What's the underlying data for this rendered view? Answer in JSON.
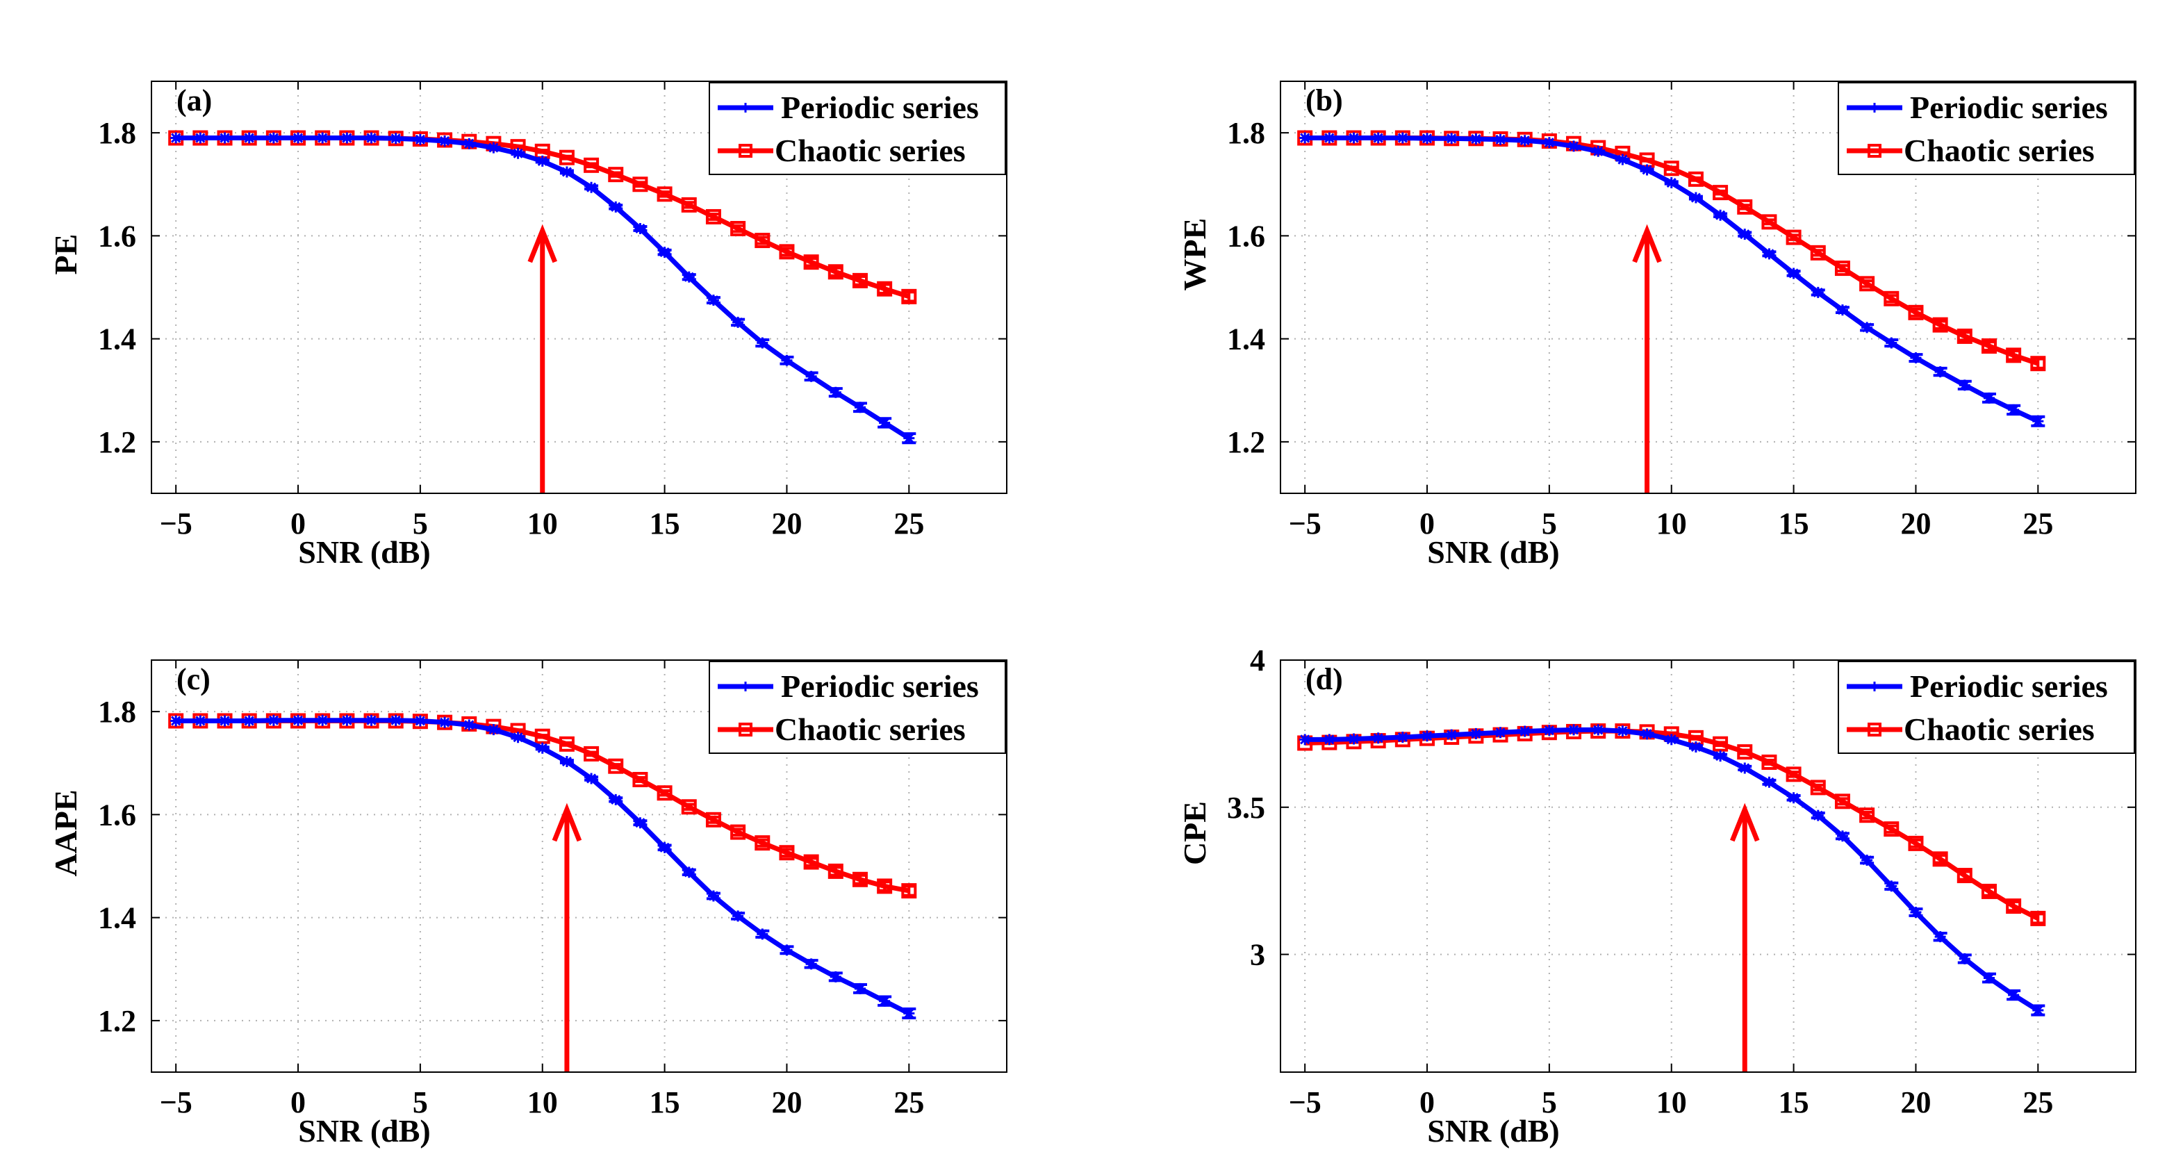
{
  "figure": {
    "colors": {
      "periodic": "#0000ff",
      "chaotic": "#ff0000",
      "arrow": "#ff0000",
      "grid": "#b0b0b0",
      "axis": "#000000"
    }
  },
  "chart_data": [
    {
      "type": "line",
      "panel": "(a)",
      "xlabel": "SNR (dB)",
      "ylabel": "PE",
      "xlim": [
        -6,
        29
      ],
      "ylim": [
        1.1,
        1.9
      ],
      "xticks": [
        -5,
        0,
        5,
        10,
        15,
        20,
        25
      ],
      "xtick_labels": [
        "−5",
        "0",
        "5",
        "10",
        "15",
        "20",
        "25"
      ],
      "yticks": [
        1.2,
        1.4,
        1.6,
        1.8
      ],
      "ytick_labels": [
        "1.2",
        "1.4",
        "1.6",
        "1.8"
      ],
      "grid": true,
      "legend_position": "top-right",
      "arrow_x": 10,
      "x": [
        -5,
        -4,
        -3,
        -2,
        -1,
        0,
        1,
        2,
        3,
        4,
        5,
        6,
        7,
        8,
        9,
        10,
        11,
        12,
        13,
        14,
        15,
        16,
        17,
        18,
        19,
        20,
        21,
        22,
        23,
        24,
        25
      ],
      "series": [
        {
          "name": "Periodic series",
          "marker": "star",
          "values": [
            1.79,
            1.79,
            1.79,
            1.79,
            1.79,
            1.79,
            1.79,
            1.79,
            1.79,
            1.789,
            1.787,
            1.784,
            1.779,
            1.771,
            1.76,
            1.745,
            1.724,
            1.694,
            1.656,
            1.614,
            1.568,
            1.52,
            1.475,
            1.432,
            1.392,
            1.358,
            1.327,
            1.296,
            1.267,
            1.237,
            1.207
          ]
        },
        {
          "name": "Chaotic series",
          "marker": "square",
          "values": [
            1.79,
            1.79,
            1.79,
            1.79,
            1.79,
            1.79,
            1.79,
            1.79,
            1.79,
            1.789,
            1.788,
            1.786,
            1.783,
            1.779,
            1.773,
            1.764,
            1.752,
            1.737,
            1.719,
            1.7,
            1.681,
            1.66,
            1.637,
            1.614,
            1.591,
            1.569,
            1.549,
            1.53,
            1.513,
            1.497,
            1.482
          ]
        }
      ]
    },
    {
      "type": "line",
      "panel": "(b)",
      "xlabel": "SNR (dB)",
      "ylabel": "WPE",
      "xlim": [
        -6,
        29
      ],
      "ylim": [
        1.1,
        1.9
      ],
      "xticks": [
        -5,
        0,
        5,
        10,
        15,
        20,
        25
      ],
      "xtick_labels": [
        "−5",
        "0",
        "5",
        "10",
        "15",
        "20",
        "25"
      ],
      "yticks": [
        1.2,
        1.4,
        1.6,
        1.8
      ],
      "ytick_labels": [
        "1.2",
        "1.4",
        "1.6",
        "1.8"
      ],
      "grid": true,
      "legend_position": "top-right",
      "arrow_x": 9,
      "x": [
        -5,
        -4,
        -3,
        -2,
        -1,
        0,
        1,
        2,
        3,
        4,
        5,
        6,
        7,
        8,
        9,
        10,
        11,
        12,
        13,
        14,
        15,
        16,
        17,
        18,
        19,
        20,
        21,
        22,
        23,
        24,
        25
      ],
      "series": [
        {
          "name": "Periodic series",
          "marker": "star",
          "values": [
            1.79,
            1.79,
            1.79,
            1.79,
            1.79,
            1.789,
            1.789,
            1.788,
            1.787,
            1.785,
            1.781,
            1.774,
            1.764,
            1.748,
            1.728,
            1.703,
            1.674,
            1.64,
            1.603,
            1.565,
            1.527,
            1.49,
            1.456,
            1.422,
            1.392,
            1.363,
            1.336,
            1.31,
            1.285,
            1.262,
            1.24
          ]
        },
        {
          "name": "Chaotic series",
          "marker": "square",
          "values": [
            1.79,
            1.79,
            1.79,
            1.79,
            1.79,
            1.79,
            1.789,
            1.789,
            1.788,
            1.787,
            1.784,
            1.779,
            1.771,
            1.76,
            1.747,
            1.731,
            1.71,
            1.684,
            1.656,
            1.627,
            1.597,
            1.567,
            1.537,
            1.507,
            1.478,
            1.451,
            1.427,
            1.405,
            1.386,
            1.368,
            1.352
          ]
        }
      ]
    },
    {
      "type": "line",
      "panel": "(c)",
      "xlabel": "SNR (dB)",
      "ylabel": "AAPE",
      "xlim": [
        -6,
        29
      ],
      "ylim": [
        1.1,
        1.9
      ],
      "xticks": [
        -5,
        0,
        5,
        10,
        15,
        20,
        25
      ],
      "xtick_labels": [
        "−5",
        "0",
        "5",
        "10",
        "15",
        "20",
        "25"
      ],
      "yticks": [
        1.2,
        1.4,
        1.6,
        1.8
      ],
      "ytick_labels": [
        "1.2",
        "1.4",
        "1.6",
        "1.8"
      ],
      "grid": true,
      "legend_position": "top-right",
      "arrow_x": 11,
      "x": [
        -5,
        -4,
        -3,
        -2,
        -1,
        0,
        1,
        2,
        3,
        4,
        5,
        6,
        7,
        8,
        9,
        10,
        11,
        12,
        13,
        14,
        15,
        16,
        17,
        18,
        19,
        20,
        21,
        22,
        23,
        24,
        25
      ],
      "series": [
        {
          "name": "Periodic series",
          "marker": "star",
          "values": [
            1.782,
            1.782,
            1.782,
            1.782,
            1.783,
            1.783,
            1.783,
            1.783,
            1.783,
            1.783,
            1.782,
            1.779,
            1.774,
            1.765,
            1.75,
            1.729,
            1.703,
            1.67,
            1.629,
            1.584,
            1.536,
            1.488,
            1.442,
            1.403,
            1.368,
            1.337,
            1.31,
            1.285,
            1.262,
            1.238,
            1.214
          ]
        },
        {
          "name": "Chaotic series",
          "marker": "square",
          "values": [
            1.782,
            1.782,
            1.782,
            1.782,
            1.782,
            1.782,
            1.782,
            1.782,
            1.782,
            1.782,
            1.781,
            1.779,
            1.776,
            1.771,
            1.763,
            1.752,
            1.737,
            1.718,
            1.694,
            1.668,
            1.642,
            1.615,
            1.59,
            1.566,
            1.545,
            1.526,
            1.508,
            1.49,
            1.474,
            1.461,
            1.452
          ]
        }
      ]
    },
    {
      "type": "line",
      "panel": "(d)",
      "xlabel": "SNR (dB)",
      "ylabel": "CPE",
      "xlim": [
        -6,
        29
      ],
      "ylim": [
        2.6,
        4.0
      ],
      "xticks": [
        -5,
        0,
        5,
        10,
        15,
        20,
        25
      ],
      "xtick_labels": [
        "−5",
        "0",
        "5",
        "10",
        "15",
        "20",
        "25"
      ],
      "yticks": [
        3.0,
        3.5,
        4.0
      ],
      "ytick_labels": [
        "3",
        "3.5",
        "4"
      ],
      "grid": true,
      "legend_position": "top-right",
      "arrow_x": 13,
      "x": [
        -5,
        -4,
        -3,
        -2,
        -1,
        0,
        1,
        2,
        3,
        4,
        5,
        6,
        7,
        8,
        9,
        10,
        11,
        12,
        13,
        14,
        15,
        16,
        17,
        18,
        19,
        20,
        21,
        22,
        23,
        24,
        25
      ],
      "series": [
        {
          "name": "Periodic series",
          "marker": "star",
          "values": [
            3.73,
            3.73,
            3.732,
            3.735,
            3.738,
            3.742,
            3.746,
            3.75,
            3.754,
            3.758,
            3.761,
            3.763,
            3.763,
            3.759,
            3.749,
            3.73,
            3.705,
            3.674,
            3.633,
            3.585,
            3.532,
            3.472,
            3.402,
            3.32,
            3.232,
            3.143,
            3.06,
            2.985,
            2.92,
            2.862,
            2.81
          ]
        },
        {
          "name": "Chaotic series",
          "marker": "square",
          "values": [
            3.718,
            3.72,
            3.723,
            3.726,
            3.73,
            3.734,
            3.738,
            3.742,
            3.746,
            3.75,
            3.754,
            3.757,
            3.759,
            3.759,
            3.756,
            3.749,
            3.736,
            3.715,
            3.688,
            3.653,
            3.612,
            3.567,
            3.52,
            3.473,
            3.426,
            3.377,
            3.324,
            3.268,
            3.214,
            3.164,
            3.122
          ]
        }
      ]
    }
  ]
}
